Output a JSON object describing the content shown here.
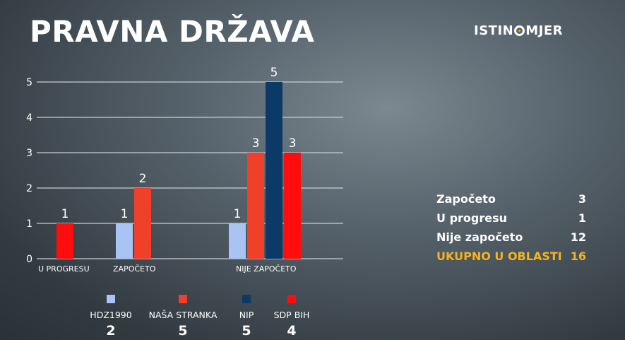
{
  "title": "PRAVNA DRŽAVA",
  "logo": {
    "left": "ISTIN",
    "right": "MJER",
    "icon": "target-o-icon"
  },
  "colors": {
    "accent": "#f5b41e"
  },
  "chart_data": {
    "type": "bar",
    "title": "",
    "xlabel": "",
    "ylabel": "",
    "categories": [
      "U PROGRESU",
      "ZAPOČETO",
      "NIJE ZAPOČETO"
    ],
    "y_ticks": [
      "0",
      "1",
      "2",
      "3",
      "4",
      "5"
    ],
    "ylim": [
      0,
      5
    ],
    "grid": true,
    "legend_position": "bottom",
    "series": [
      {
        "name": "HDZ1990",
        "color": "#a9c4f3",
        "values": [
          null,
          1,
          1
        ],
        "total": "2"
      },
      {
        "name": "NAŠA STRANKA",
        "color": "#f0402a",
        "values": [
          null,
          2,
          3
        ],
        "total": "5"
      },
      {
        "name": "NIP",
        "color": "#0c3a68",
        "values": [
          null,
          null,
          5
        ],
        "total": "5"
      },
      {
        "name": "SDP BIH",
        "color": "#ff0d0d",
        "values": [
          1,
          null,
          3
        ],
        "total": "4"
      }
    ]
  },
  "summary": [
    {
      "label": "Započeto",
      "value": "3"
    },
    {
      "label": "U progresu",
      "value": "1"
    },
    {
      "label": "Nije započeto",
      "value": "12"
    },
    {
      "label": "UKUPNO U OBLASTI",
      "value": "16",
      "highlight": true
    }
  ]
}
